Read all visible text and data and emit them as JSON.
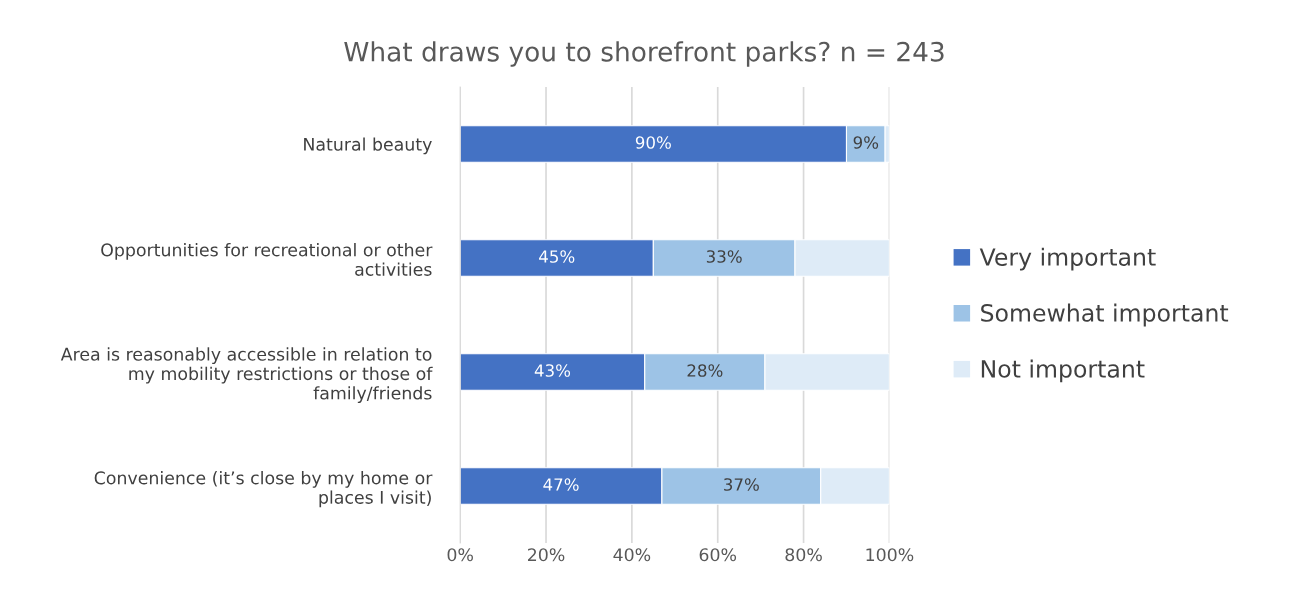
{
  "chart_data": {
    "type": "bar",
    "orientation": "horizontal",
    "stacked": true,
    "title": "What draws you to shorefront parks? n = 243",
    "categories": [
      "Natural beauty",
      "Opportunities for recreational or other\nactivities",
      "Area is reasonably accessible in relation to\nmy mobility restrictions or those of\nfamily/friends",
      "Convenience (it’s close by my home or\nplaces I visit)"
    ],
    "series": [
      {
        "name": "Very important",
        "color": "#4472c4",
        "values": [
          90,
          45,
          43,
          47
        ],
        "value_labels": [
          "90%",
          "45%",
          "43%",
          "47%"
        ]
      },
      {
        "name": "Somewhat important",
        "color": "#9dc3e6",
        "values": [
          9,
          33,
          28,
          37
        ],
        "value_labels": [
          "9%",
          "33%",
          "28%",
          "37%"
        ]
      },
      {
        "name": "Not important",
        "color": "#deebf7",
        "values": [
          1,
          22,
          29,
          16
        ],
        "value_labels": [
          null,
          null,
          null,
          null
        ]
      }
    ],
    "xlim": [
      0,
      100
    ],
    "xticks": [
      {
        "value": 0,
        "label": "0%"
      },
      {
        "value": 20,
        "label": "20%"
      },
      {
        "value": 40,
        "label": "40%"
      },
      {
        "value": 60,
        "label": "60%"
      },
      {
        "value": 80,
        "label": "80%"
      },
      {
        "value": 100,
        "label": "100%"
      }
    ],
    "grid": "x",
    "legend": "right"
  }
}
